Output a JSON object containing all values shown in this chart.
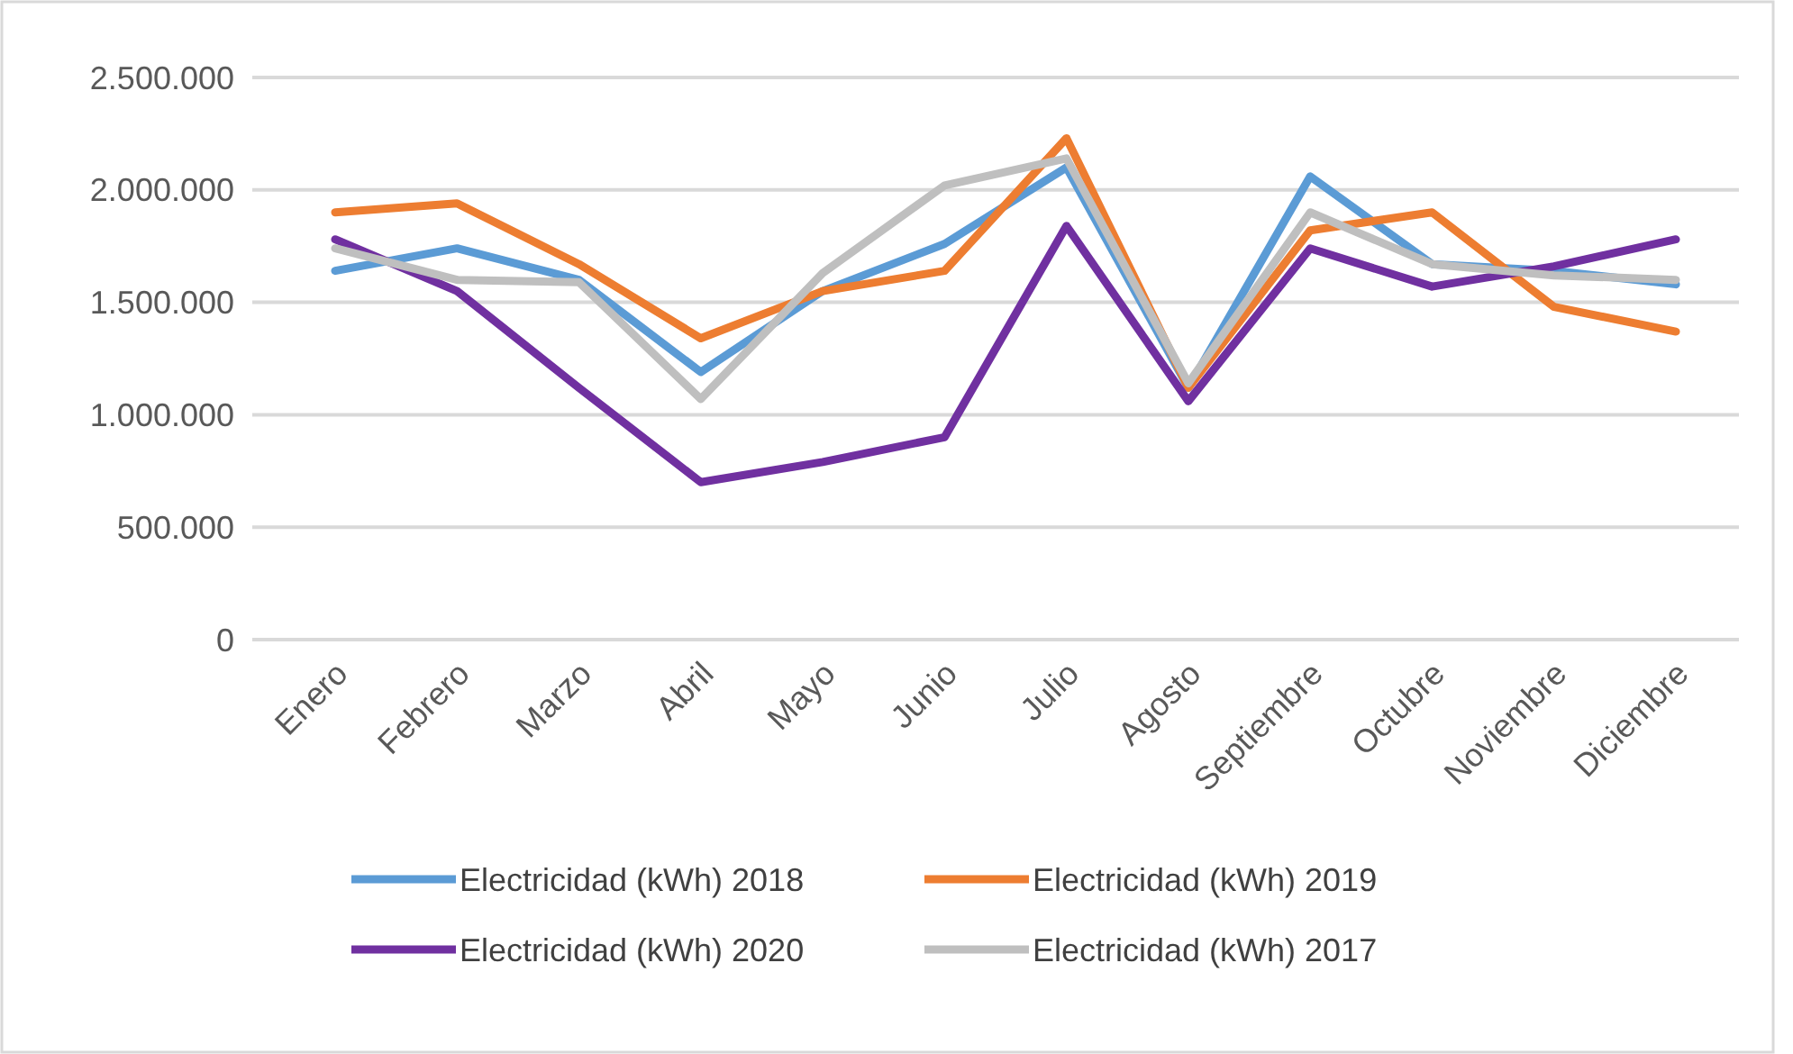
{
  "chart_data": {
    "type": "line",
    "categories": [
      "Enero",
      "Febrero",
      "Marzo",
      "Abril",
      "Mayo",
      "Junio",
      "Julio",
      "Agosto",
      "Septiembre",
      "Octubre",
      "Noviembre",
      "Diciembre"
    ],
    "series": [
      {
        "name": "Electricidad (kWh) 2018",
        "color": "#5b9bd5",
        "values": [
          1640000,
          1740000,
          1600000,
          1190000,
          1550000,
          1760000,
          2100000,
          1120000,
          2060000,
          1670000,
          1640000,
          1580000
        ]
      },
      {
        "name": "Electricidad (kWh) 2019",
        "color": "#ed7d31",
        "values": [
          1900000,
          1940000,
          1670000,
          1340000,
          1550000,
          1640000,
          2230000,
          1120000,
          1820000,
          1900000,
          1480000,
          1370000
        ]
      },
      {
        "name": "Electricidad (kWh) 2020",
        "color": "#7030a0",
        "values": [
          1780000,
          1550000,
          1120000,
          700000,
          790000,
          900000,
          1840000,
          1060000,
          1740000,
          1570000,
          1660000,
          1780000
        ]
      },
      {
        "name": "Electricidad (kWh) 2017",
        "color": "#bfbfbf",
        "values": [
          1740000,
          1600000,
          1590000,
          1070000,
          1630000,
          2020000,
          2140000,
          1140000,
          1900000,
          1670000,
          1620000,
          1600000
        ]
      }
    ],
    "ylim": [
      0,
      2500000
    ],
    "yticks": [
      {
        "value": 0,
        "label": "0"
      },
      {
        "value": 500000,
        "label": "500.000"
      },
      {
        "value": 1000000,
        "label": "1.000.000"
      },
      {
        "value": 1500000,
        "label": "1.500.000"
      },
      {
        "value": 2000000,
        "label": "2.000.000"
      },
      {
        "value": 2500000,
        "label": "2.500.000"
      }
    ],
    "grid": "y",
    "legend": "bottom",
    "marker": "none",
    "line_style": "solid"
  }
}
